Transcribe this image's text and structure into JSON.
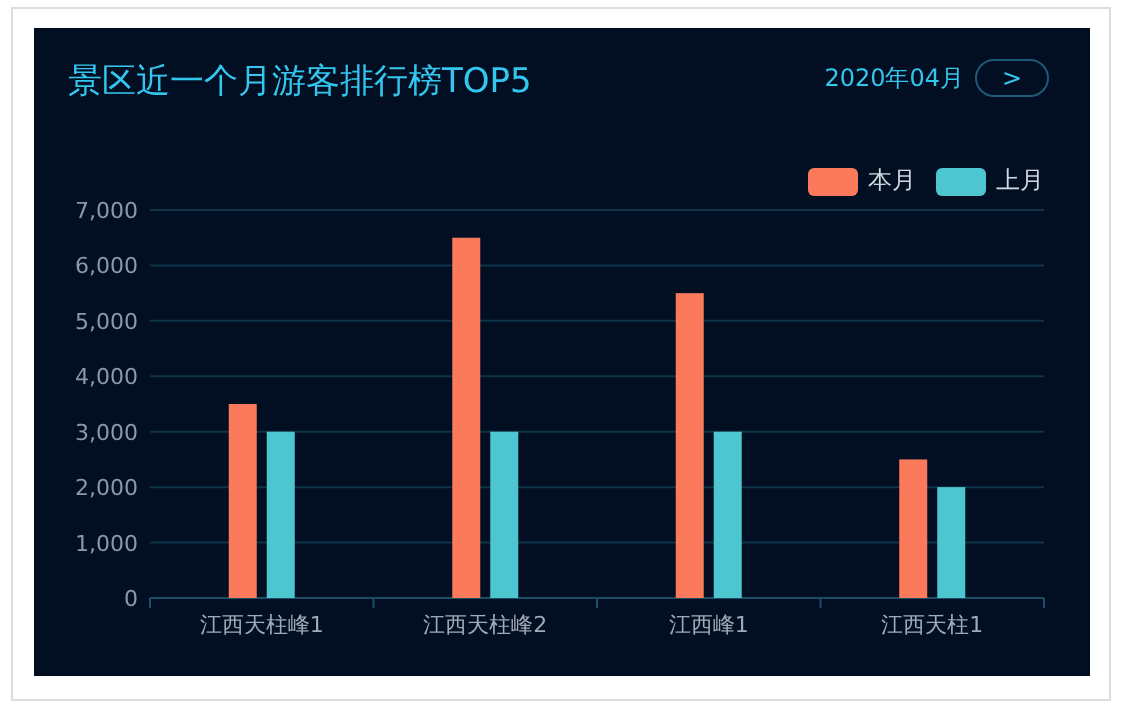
{
  "chart_data": {
    "type": "bar",
    "title": "景区近一个月游客排行榜TOP5",
    "subtitle": "2020年04月",
    "annotations": [
      ">"
    ],
    "categories": [
      "江西天柱峰1",
      "江西天柱峰2",
      "江西峰1",
      "江西天柱1"
    ],
    "series": [
      {
        "name": "本月",
        "color": "#fb7a5c",
        "values": [
          3500,
          6500,
          5500,
          2500
        ]
      },
      {
        "name": "上月",
        "color": "#4ec6cf",
        "values": [
          3000,
          3000,
          3000,
          2000
        ]
      }
    ],
    "ylim": [
      0,
      7000
    ],
    "yticks": [
      {
        "value": 0,
        "label": "0"
      },
      {
        "value": 1000,
        "label": "1,000"
      },
      {
        "value": 2000,
        "label": "2,000"
      },
      {
        "value": 3000,
        "label": "3,000"
      },
      {
        "value": 4000,
        "label": "4,000"
      },
      {
        "value": 5000,
        "label": "5,000"
      },
      {
        "value": 6000,
        "label": "6,000"
      },
      {
        "value": 7000,
        "label": "7,000"
      }
    ],
    "grid": "y",
    "legend": "top right"
  }
}
